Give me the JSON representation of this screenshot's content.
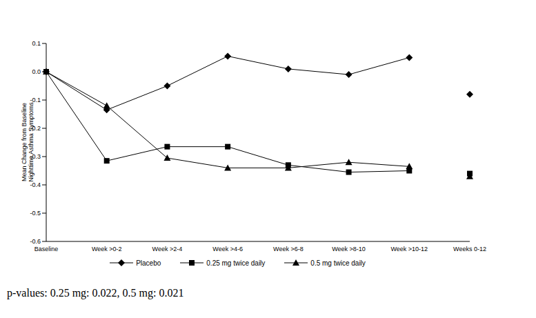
{
  "chart_data": {
    "type": "line",
    "y_label": "Mean Change from Baseline\nNighttime Asthma Symptoms",
    "annotation": "p-values: 0.25 mg: 0.022, 0.5 mg: 0.021",
    "categories": [
      "Baseline",
      "Week >0-2",
      "Week >2-4",
      "Week >4-6",
      "Week >6-8",
      "Week >8-10",
      "Week >10-12",
      "Weeks 0-12"
    ],
    "series": [
      {
        "name": "Placebo",
        "color": "#000000",
        "marker": "diamond",
        "values": [
          0,
          -0.135,
          -0.05,
          0.055,
          0.01,
          -0.01,
          0.05,
          -0.08
        ]
      },
      {
        "name": "0.25 mg twice daily",
        "color": "#000000",
        "marker": "square",
        "values": [
          0,
          -0.315,
          -0.265,
          -0.265,
          -0.33,
          -0.355,
          -0.35,
          -0.36
        ]
      },
      {
        "name": "0.5 mg twice daily",
        "color": "#000000",
        "marker": "triangle",
        "values": [
          0,
          -0.12,
          -0.305,
          -0.34,
          -0.34,
          -0.32,
          -0.335,
          -0.37
        ]
      }
    ],
    "ylim": [
      -0.6,
      0.1
    ],
    "yticks": [
      0.1,
      {
        "value": 0,
        "label": "0.0"
      },
      -0.1,
      -0.2,
      -0.3,
      -0.4,
      -0.5,
      -0.6
    ],
    "grid": false,
    "legend": "bottom"
  }
}
